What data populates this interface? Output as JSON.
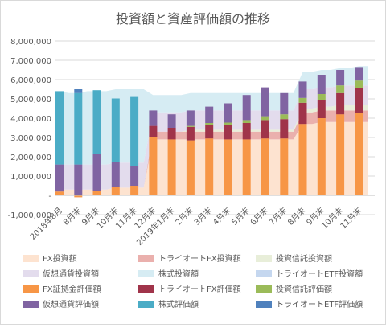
{
  "chart_data": {
    "type": "bar+area",
    "title": "投資額と資産評価額の推移",
    "xlabel": "",
    "ylabel": "",
    "ylim": [
      -1000000,
      8000000
    ],
    "yticks": [
      -1000000,
      0,
      1000000,
      2000000,
      3000000,
      4000000,
      5000000,
      6000000,
      7000000,
      8000000
    ],
    "ytick_labels": [
      "-1,000,000",
      "-",
      "1,000,000",
      "2,000,000",
      "3,000,000",
      "4,000,000",
      "5,000,000",
      "6,000,000",
      "7,000,000",
      "8,000,000"
    ],
    "grid": true,
    "legend_position": "bottom",
    "categories": [
      "2018年8月",
      "",
      "8月末",
      "",
      "9月末",
      "",
      "10月末",
      "",
      "11月末",
      "",
      "12月末",
      "",
      "2019年1月末",
      "",
      "2月末",
      "",
      "3月末",
      "",
      "4月末",
      "",
      "5月末",
      "",
      "6月末",
      "",
      "7月末",
      "",
      "8月末",
      "",
      "9月末",
      "",
      "10月末",
      "",
      "11月末",
      ""
    ],
    "area_series": [
      {
        "name": "FX投資額",
        "color": "#fde3d0",
        "values": [
          300000,
          300000,
          300000,
          300000,
          300000,
          300000,
          400000,
          400000,
          400000,
          400000,
          2900000,
          2900000,
          2900000,
          2900000,
          2900000,
          2900000,
          2900000,
          2900000,
          2900000,
          2900000,
          2900000,
          2900000,
          2900000,
          2900000,
          2900000,
          2900000,
          3700000,
          3700000,
          3800000,
          3800000,
          3800000,
          3800000,
          3800000,
          3800000
        ]
      },
      {
        "name": "トライオートFX投資額",
        "color": "#eab0ad",
        "values": [
          0,
          0,
          0,
          0,
          0,
          0,
          0,
          0,
          0,
          0,
          400000,
          400000,
          400000,
          400000,
          400000,
          400000,
          400000,
          400000,
          400000,
          400000,
          400000,
          400000,
          400000,
          400000,
          400000,
          400000,
          600000,
          600000,
          600000,
          600000,
          600000,
          600000,
          600000,
          600000
        ]
      },
      {
        "name": "投資信託投資額",
        "color": "#e8eed9",
        "values": [
          0,
          0,
          0,
          0,
          0,
          0,
          0,
          0,
          0,
          0,
          0,
          0,
          0,
          0,
          100000,
          100000,
          100000,
          100000,
          100000,
          100000,
          100000,
          100000,
          100000,
          100000,
          100000,
          100000,
          200000,
          200000,
          200000,
          200000,
          300000,
          300000,
          300000,
          300000
        ]
      },
      {
        "name": "仮想通貨投資額",
        "color": "#e3dced",
        "values": [
          1300000,
          1300000,
          1300000,
          1300000,
          1300000,
          1300000,
          1300000,
          1300000,
          1300000,
          1300000,
          1000000,
          1000000,
          1000000,
          1000000,
          1000000,
          1000000,
          1000000,
          1000000,
          1000000,
          1000000,
          1000000,
          1000000,
          1000000,
          1000000,
          1000000,
          1000000,
          1000000,
          1000000,
          1000000,
          1000000,
          1000000,
          1000000,
          1000000,
          1000000
        ]
      },
      {
        "name": "株式投資額",
        "color": "#d6ecf3",
        "values": [
          3800000,
          3700000,
          3700000,
          3800000,
          3800000,
          3800000,
          3800000,
          3800000,
          3800000,
          3800000,
          900000,
          900000,
          900000,
          900000,
          900000,
          900000,
          900000,
          900000,
          900000,
          900000,
          900000,
          900000,
          900000,
          900000,
          900000,
          900000,
          900000,
          900000,
          900000,
          900000,
          900000,
          900000,
          1000000,
          1000000
        ]
      },
      {
        "name": "トライオートETF投資額",
        "color": "#c5d7ef",
        "values": [
          0,
          0,
          0,
          0,
          0,
          0,
          0,
          0,
          0,
          0,
          0,
          0,
          0,
          0,
          0,
          0,
          0,
          0,
          0,
          0,
          0,
          0,
          0,
          0,
          0,
          0,
          0,
          0,
          0,
          0,
          0,
          0,
          0,
          0
        ]
      }
    ],
    "bar_series": [
      {
        "name": "FX証拠金評価額",
        "color": "#f79646",
        "values": [
          200000,
          0,
          -100000,
          0,
          250000,
          0,
          420000,
          0,
          500000,
          0,
          3000000,
          0,
          2900000,
          0,
          2850000,
          0,
          2950000,
          0,
          2900000,
          0,
          2900000,
          0,
          2950000,
          0,
          2950000,
          0,
          3700000,
          0,
          4000000,
          0,
          4200000,
          0,
          4250000,
          0
        ]
      },
      {
        "name": "トライオートFX評価額",
        "color": "#a0344a",
        "values": [
          0,
          0,
          0,
          0,
          0,
          0,
          0,
          0,
          0,
          0,
          600000,
          0,
          600000,
          0,
          700000,
          0,
          700000,
          0,
          750000,
          0,
          850000,
          0,
          950000,
          0,
          1000000,
          0,
          1100000,
          0,
          950000,
          0,
          1100000,
          0,
          1300000,
          0
        ]
      },
      {
        "name": "投資信託評価額",
        "color": "#9bbb59",
        "values": [
          0,
          0,
          0,
          0,
          0,
          0,
          0,
          0,
          0,
          0,
          0,
          0,
          0,
          0,
          50000,
          0,
          100000,
          0,
          120000,
          0,
          150000,
          0,
          200000,
          0,
          250000,
          0,
          250000,
          0,
          300000,
          0,
          400000,
          0,
          400000,
          0
        ]
      },
      {
        "name": "仮想通貨評価額",
        "color": "#8064a2",
        "values": [
          1400000,
          0,
          1600000,
          0,
          1900000,
          0,
          1300000,
          0,
          1000000,
          0,
          800000,
          0,
          700000,
          0,
          800000,
          0,
          850000,
          0,
          1000000,
          0,
          1300000,
          0,
          1500000,
          0,
          1100000,
          0,
          850000,
          0,
          1000000,
          0,
          800000,
          0,
          700000,
          0
        ]
      },
      {
        "name": "株式評価額",
        "color": "#4bacc6",
        "values": [
          3800000,
          0,
          3700000,
          0,
          3300000,
          0,
          3300000,
          0,
          3600000,
          0,
          0,
          0,
          0,
          0,
          0,
          0,
          0,
          0,
          0,
          0,
          0,
          0,
          0,
          0,
          0,
          0,
          0,
          0,
          0,
          0,
          0,
          0,
          0,
          0
        ]
      },
      {
        "name": "トライオートETF評価額",
        "color": "#4f81bd",
        "values": [
          0,
          0,
          200000,
          0,
          0,
          0,
          0,
          0,
          0,
          0,
          0,
          0,
          0,
          0,
          0,
          0,
          0,
          0,
          0,
          0,
          0,
          0,
          0,
          0,
          0,
          0,
          0,
          0,
          0,
          0,
          0,
          0,
          0,
          0
        ]
      }
    ],
    "legend_entries": [
      {
        "label": "FX投資額",
        "color": "#fde3d0"
      },
      {
        "label": "トライオートFX投資額",
        "color": "#eab0ad"
      },
      {
        "label": "投資信託投資額",
        "color": "#e8eed9"
      },
      {
        "label": "仮想通貨投資額",
        "color": "#e3dced"
      },
      {
        "label": "株式投資額",
        "color": "#d6ecf3"
      },
      {
        "label": "トライオートETF投資額",
        "color": "#c5d7ef"
      },
      {
        "label": "FX証拠金評価額",
        "color": "#f79646"
      },
      {
        "label": "トライオートFX評価額",
        "color": "#a0344a"
      },
      {
        "label": "投資信託評価額",
        "color": "#9bbb59"
      },
      {
        "label": "仮想通貨評価額",
        "color": "#8064a2"
      },
      {
        "label": "株式評価額",
        "color": "#4bacc6"
      },
      {
        "label": "トライオートETF評価額",
        "color": "#4f81bd"
      }
    ]
  }
}
